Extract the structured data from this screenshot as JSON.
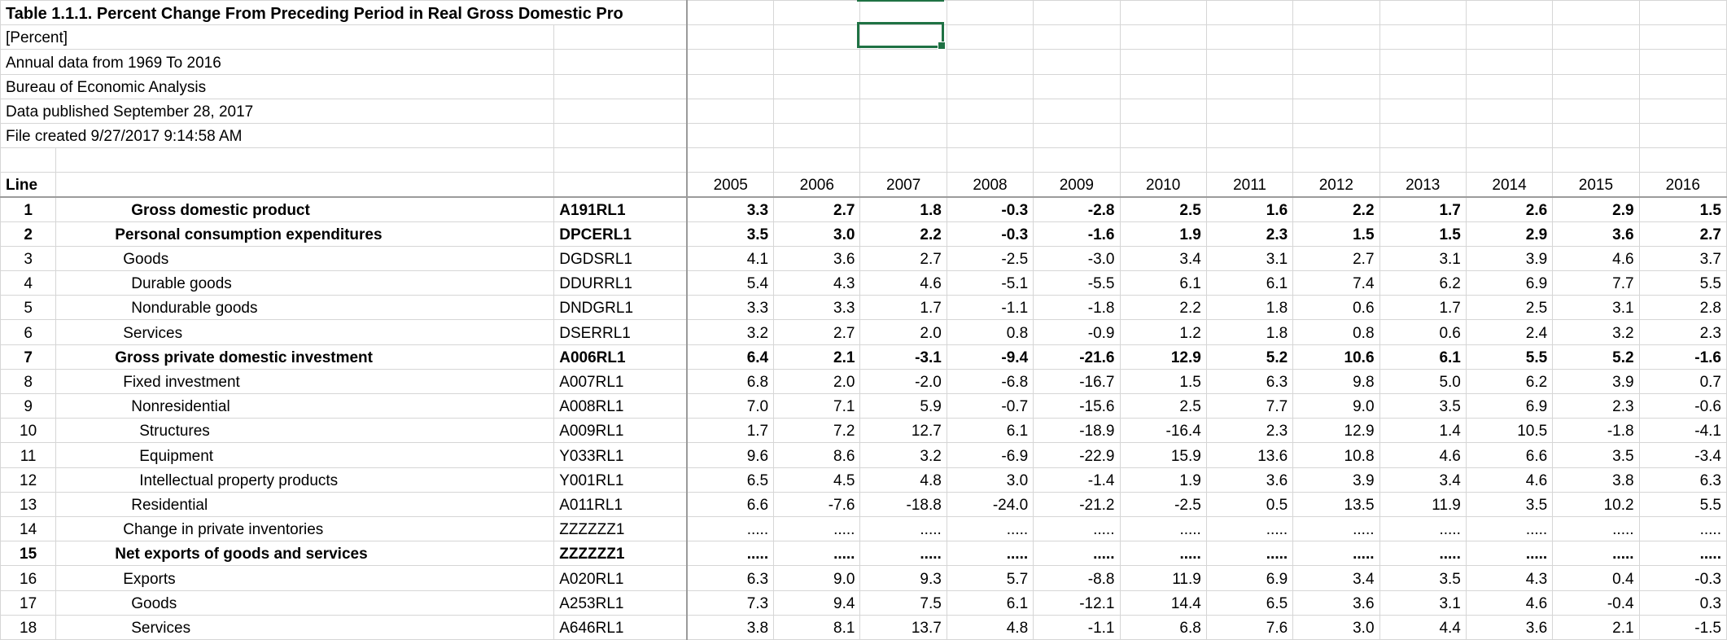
{
  "sheet": {
    "title": "Table 1.1.1. Percent Change From Preceding Period in Real Gross Domestic Pro",
    "meta": [
      "[Percent]",
      "Annual data from 1969 To 2016",
      "Bureau of Economic Analysis",
      "Data published September 28, 2017",
      "File created 9/27/2017 9:14:58 AM"
    ],
    "line_header": "Line",
    "years": [
      "2005",
      "2006",
      "2007",
      "2008",
      "2009",
      "2010",
      "2011",
      "2012",
      "2013",
      "2014",
      "2015",
      "2016"
    ],
    "rows": [
      {
        "line": "1",
        "label": "Gross domestic product",
        "code": "A191RL1",
        "bold": true,
        "indent": 1,
        "values": [
          "3.3",
          "2.7",
          "1.8",
          "-0.3",
          "-2.8",
          "2.5",
          "1.6",
          "2.2",
          "1.7",
          "2.6",
          "2.9",
          "1.5"
        ]
      },
      {
        "line": "2",
        "label": "Personal consumption expenditures",
        "code": "DPCERL1",
        "bold": true,
        "indent": 0,
        "values": [
          "3.5",
          "3.0",
          "2.2",
          "-0.3",
          "-1.6",
          "1.9",
          "2.3",
          "1.5",
          "1.5",
          "2.9",
          "3.6",
          "2.7"
        ]
      },
      {
        "line": "3",
        "label": "Goods",
        "code": "DGDSRL1",
        "bold": false,
        "indent": 2,
        "values": [
          "4.1",
          "3.6",
          "2.7",
          "-2.5",
          "-3.0",
          "3.4",
          "3.1",
          "2.7",
          "3.1",
          "3.9",
          "4.6",
          "3.7"
        ]
      },
      {
        "line": "4",
        "label": "Durable goods",
        "code": "DDURRL1",
        "bold": false,
        "indent": 3,
        "values": [
          "5.4",
          "4.3",
          "4.6",
          "-5.1",
          "-5.5",
          "6.1",
          "6.1",
          "7.4",
          "6.2",
          "6.9",
          "7.7",
          "5.5"
        ]
      },
      {
        "line": "5",
        "label": "Nondurable goods",
        "code": "DNDGRL1",
        "bold": false,
        "indent": 3,
        "values": [
          "3.3",
          "3.3",
          "1.7",
          "-1.1",
          "-1.8",
          "2.2",
          "1.8",
          "0.6",
          "1.7",
          "2.5",
          "3.1",
          "2.8"
        ]
      },
      {
        "line": "6",
        "label": "Services",
        "code": "DSERRL1",
        "bold": false,
        "indent": 2,
        "values": [
          "3.2",
          "2.7",
          "2.0",
          "0.8",
          "-0.9",
          "1.2",
          "1.8",
          "0.8",
          "0.6",
          "2.4",
          "3.2",
          "2.3"
        ]
      },
      {
        "line": "7",
        "label": "Gross private domestic investment",
        "code": "A006RL1",
        "bold": true,
        "indent": 0,
        "values": [
          "6.4",
          "2.1",
          "-3.1",
          "-9.4",
          "-21.6",
          "12.9",
          "5.2",
          "10.6",
          "6.1",
          "5.5",
          "5.2",
          "-1.6"
        ]
      },
      {
        "line": "8",
        "label": "Fixed investment",
        "code": "A007RL1",
        "bold": false,
        "indent": 2,
        "values": [
          "6.8",
          "2.0",
          "-2.0",
          "-6.8",
          "-16.7",
          "1.5",
          "6.3",
          "9.8",
          "5.0",
          "6.2",
          "3.9",
          "0.7"
        ]
      },
      {
        "line": "9",
        "label": "Nonresidential",
        "code": "A008RL1",
        "bold": false,
        "indent": 3,
        "values": [
          "7.0",
          "7.1",
          "5.9",
          "-0.7",
          "-15.6",
          "2.5",
          "7.7",
          "9.0",
          "3.5",
          "6.9",
          "2.3",
          "-0.6"
        ]
      },
      {
        "line": "10",
        "label": "Structures",
        "code": "A009RL1",
        "bold": false,
        "indent": 4,
        "values": [
          "1.7",
          "7.2",
          "12.7",
          "6.1",
          "-18.9",
          "-16.4",
          "2.3",
          "12.9",
          "1.4",
          "10.5",
          "-1.8",
          "-4.1"
        ]
      },
      {
        "line": "11",
        "label": "Equipment",
        "code": "Y033RL1",
        "bold": false,
        "indent": 4,
        "values": [
          "9.6",
          "8.6",
          "3.2",
          "-6.9",
          "-22.9",
          "15.9",
          "13.6",
          "10.8",
          "4.6",
          "6.6",
          "3.5",
          "-3.4"
        ]
      },
      {
        "line": "12",
        "label": "Intellectual property products",
        "code": "Y001RL1",
        "bold": false,
        "indent": 4,
        "values": [
          "6.5",
          "4.5",
          "4.8",
          "3.0",
          "-1.4",
          "1.9",
          "3.6",
          "3.9",
          "3.4",
          "4.6",
          "3.8",
          "6.3"
        ]
      },
      {
        "line": "13",
        "label": "Residential",
        "code": "A011RL1",
        "bold": false,
        "indent": 3,
        "values": [
          "6.6",
          "-7.6",
          "-18.8",
          "-24.0",
          "-21.2",
          "-2.5",
          "0.5",
          "13.5",
          "11.9",
          "3.5",
          "10.2",
          "5.5"
        ]
      },
      {
        "line": "14",
        "label": "Change in private inventories",
        "code": "ZZZZZZ1",
        "bold": false,
        "indent": 2,
        "values": [
          ".....",
          ".....",
          ".....",
          ".....",
          ".....",
          ".....",
          ".....",
          ".....",
          ".....",
          ".....",
          ".....",
          "....."
        ]
      },
      {
        "line": "15",
        "label": "Net exports of goods and services",
        "code": "ZZZZZZ1",
        "bold": true,
        "indent": 0,
        "values": [
          ".....",
          ".....",
          ".....",
          ".....",
          ".....",
          ".....",
          ".....",
          ".....",
          ".....",
          ".....",
          ".....",
          "....."
        ]
      },
      {
        "line": "16",
        "label": "Exports",
        "code": "A020RL1",
        "bold": false,
        "indent": 2,
        "values": [
          "6.3",
          "9.0",
          "9.3",
          "5.7",
          "-8.8",
          "11.9",
          "6.9",
          "3.4",
          "3.5",
          "4.3",
          "0.4",
          "-0.3"
        ]
      },
      {
        "line": "17",
        "label": "Goods",
        "code": "A253RL1",
        "bold": false,
        "indent": 3,
        "values": [
          "7.3",
          "9.4",
          "7.5",
          "6.1",
          "-12.1",
          "14.4",
          "6.5",
          "3.6",
          "3.1",
          "4.6",
          "-0.4",
          "0.3"
        ]
      },
      {
        "line": "18",
        "label": "Services",
        "code": "A646RL1",
        "bold": false,
        "indent": 3,
        "values": [
          "3.8",
          "8.1",
          "13.7",
          "4.8",
          "-1.1",
          "6.8",
          "7.6",
          "3.0",
          "4.4",
          "3.6",
          "2.1",
          "-1.5"
        ]
      }
    ],
    "selection_color": "#1f7244"
  }
}
